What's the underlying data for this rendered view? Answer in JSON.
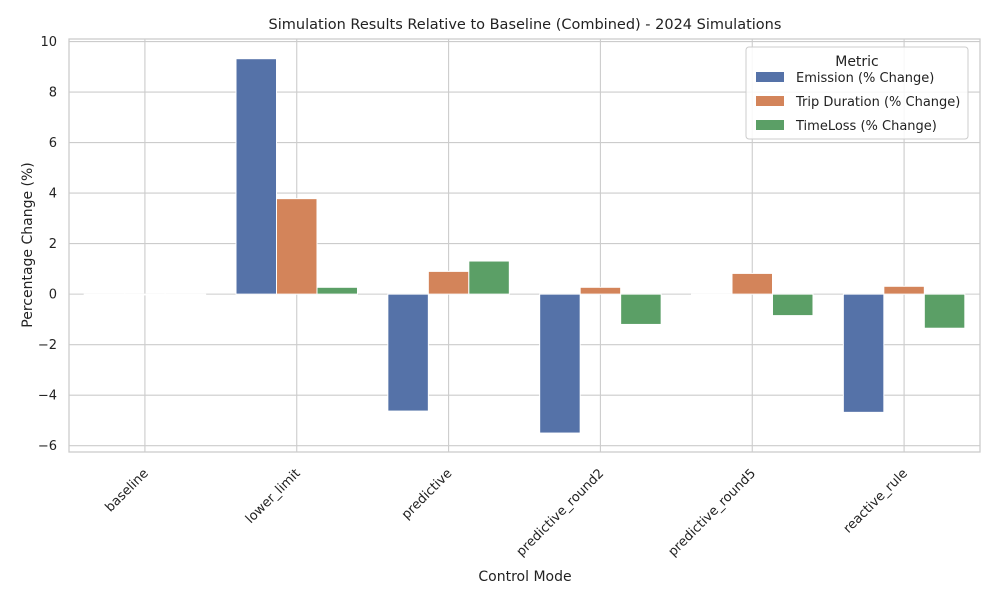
{
  "chart_data": {
    "type": "bar",
    "title": "Simulation Results Relative to Baseline (Combined) - 2024 Simulations",
    "xlabel": "Control Mode",
    "ylabel": "Percentage Change (%)",
    "ylim": [
      -6.25,
      10.1
    ],
    "yticks": [
      10,
      8,
      6,
      4,
      2,
      0,
      -2,
      -4,
      -6
    ],
    "ytick_labels": [
      "10",
      "8",
      "6",
      "4",
      "2",
      "0",
      "−2",
      "−4",
      "−6"
    ],
    "grid": true,
    "legend": {
      "title": "Metric",
      "placement": "top-right"
    },
    "categories": [
      "baseline",
      "lower_limit",
      "predictive",
      "predictive_round2",
      "predictive_round5",
      "reactive_rule"
    ],
    "series": [
      {
        "name": "Emission (% Change)",
        "color": "#5572a8",
        "values": [
          0.0,
          9.32,
          -4.63,
          -5.5,
          0.0,
          -4.68
        ]
      },
      {
        "name": "Trip Duration (% Change)",
        "color": "#d3845a",
        "values": [
          0.0,
          3.78,
          0.9,
          0.27,
          0.82,
          0.31
        ]
      },
      {
        "name": "TimeLoss (% Change)",
        "color": "#5b9f66",
        "values": [
          0.0,
          0.27,
          1.31,
          -1.2,
          -0.85,
          -1.35
        ]
      }
    ]
  }
}
